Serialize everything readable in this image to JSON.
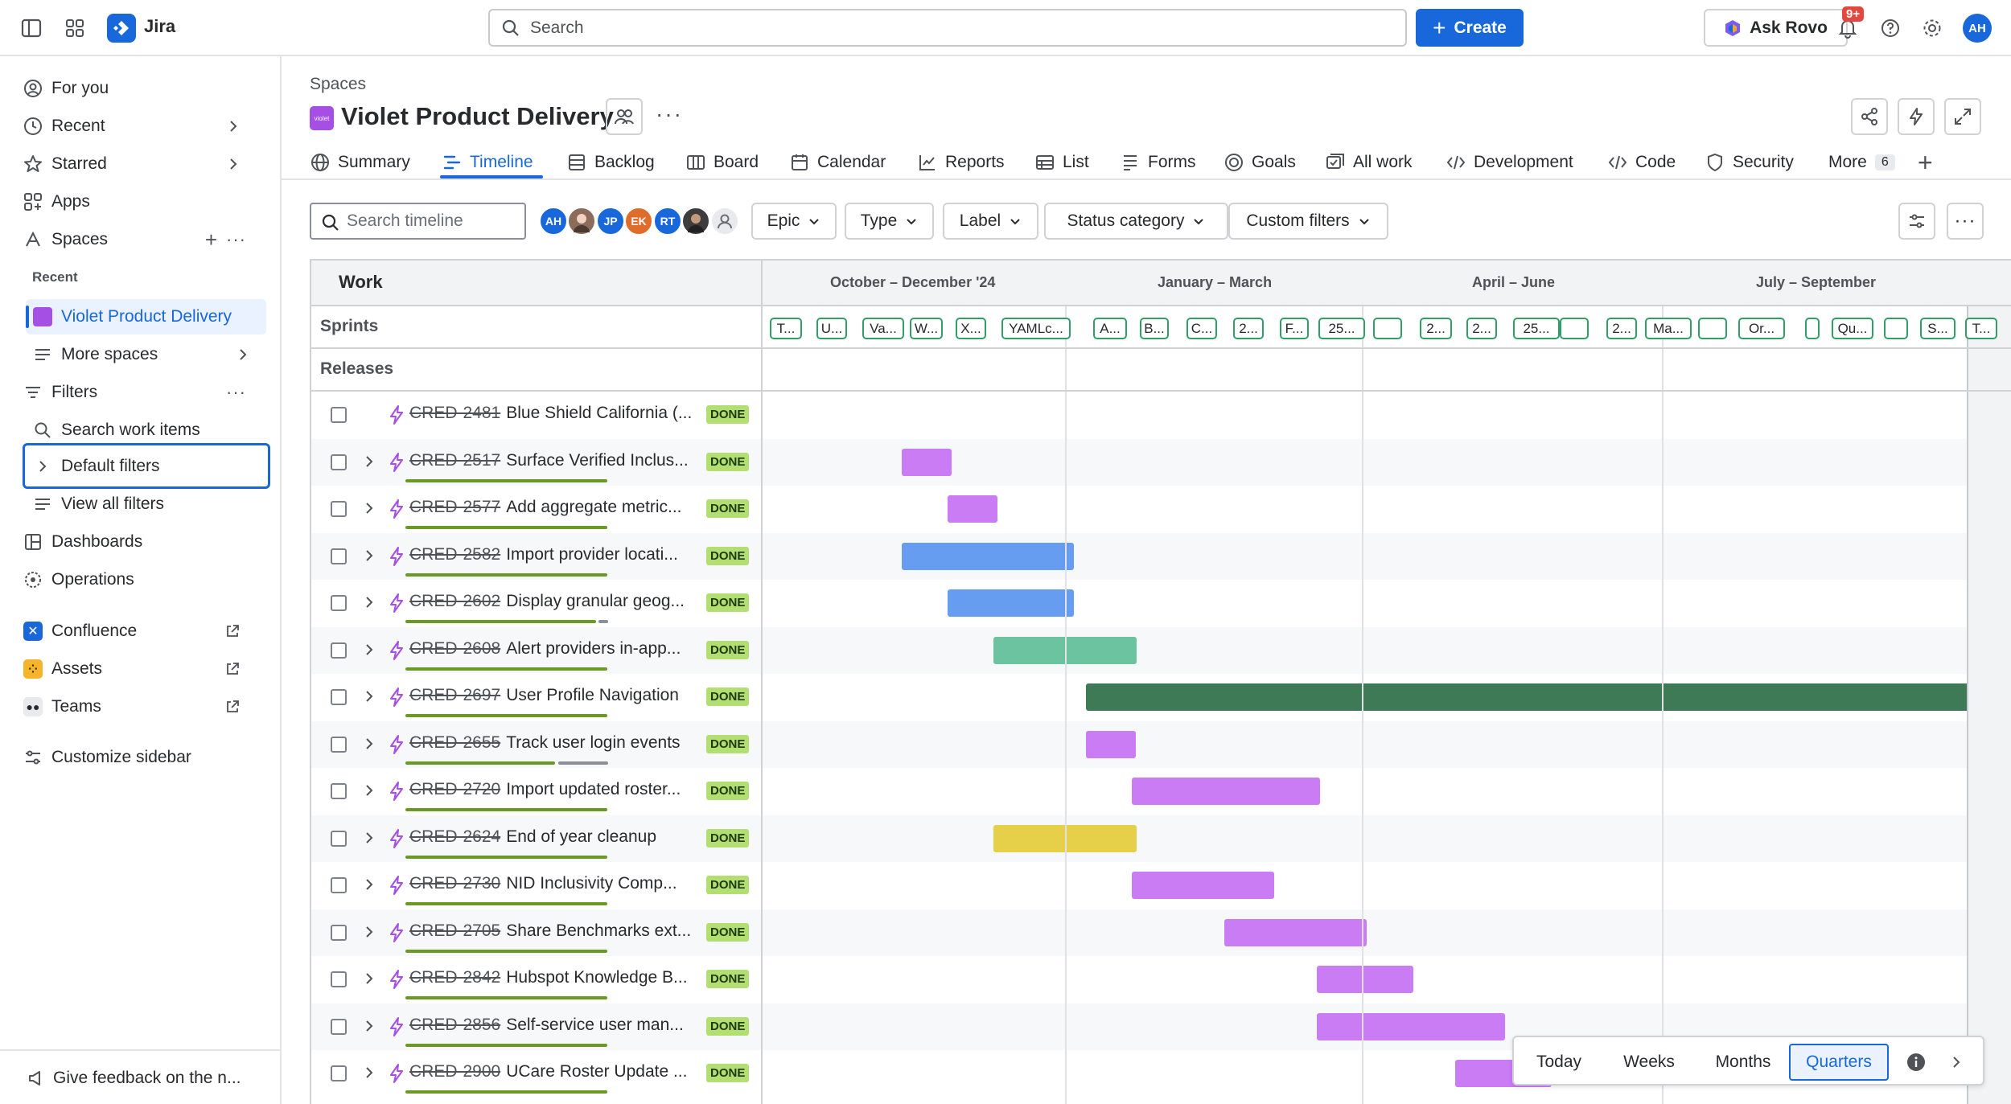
{
  "app": {
    "name": "Jira"
  },
  "topbar": {
    "search_placeholder": "Search",
    "create_label": "Create",
    "ask_rovo_label": "Ask Rovo",
    "notifications_badge": "9+",
    "avatar_initials": "AH"
  },
  "sidebar": {
    "for_you": "For you",
    "recent": "Recent",
    "starred": "Starred",
    "apps": "Apps",
    "spaces": "Spaces",
    "recent_heading": "Recent",
    "active_space": "Violet Product Delivery",
    "more_spaces": "More spaces",
    "filters": "Filters",
    "search_work_items": "Search work items",
    "default_filters": "Default filters",
    "view_all_filters": "View all filters",
    "dashboards": "Dashboards",
    "operations": "Operations",
    "confluence": "Confluence",
    "assets": "Assets",
    "teams": "Teams",
    "customize": "Customize sidebar",
    "feedback": "Give feedback on the n..."
  },
  "header": {
    "breadcrumb": "Spaces",
    "space_icon_text": "violet",
    "title": "Violet Product Delivery"
  },
  "tabs": [
    {
      "label": "Summary"
    },
    {
      "label": "Timeline"
    },
    {
      "label": "Backlog"
    },
    {
      "label": "Board"
    },
    {
      "label": "Calendar"
    },
    {
      "label": "Reports"
    },
    {
      "label": "List"
    },
    {
      "label": "Forms"
    },
    {
      "label": "Goals"
    },
    {
      "label": "All work"
    },
    {
      "label": "Development"
    },
    {
      "label": "Code"
    },
    {
      "label": "Security"
    },
    {
      "label": "More",
      "count": "6"
    }
  ],
  "filterbar": {
    "search_placeholder": "Search timeline",
    "avatars": [
      {
        "initials": "AH",
        "color": "#1868db"
      },
      {
        "initials": "",
        "color": "#8b6b5a"
      },
      {
        "initials": "JP",
        "color": "#1868db"
      },
      {
        "initials": "EK",
        "color": "#e06c2c"
      },
      {
        "initials": "RT",
        "color": "#1868db"
      },
      {
        "initials": "",
        "color": "#3d3d3d"
      },
      {
        "initials": "",
        "color": "#c7c9ce"
      }
    ],
    "epic": "Epic",
    "type": "Type",
    "label": "Label",
    "status_category": "Status category",
    "custom_filters": "Custom filters"
  },
  "timeline": {
    "work_header": "Work",
    "quarters": [
      "October – December '24",
      "January – March",
      "April – June",
      "July – September"
    ],
    "sprints_label": "Sprints",
    "releases_label": "Releases",
    "sprints": [
      "T...",
      "U...",
      "Va...",
      "W...",
      "X...",
      "YAMLc...",
      "A...",
      "B...",
      "C...",
      "2...",
      "F...",
      "25...",
      "",
      "2...",
      "2...",
      "25...",
      "",
      "2...",
      "Ma...",
      "",
      "Or...",
      "",
      "Qu...",
      "",
      "S...",
      "T..."
    ],
    "status_label": "DONE",
    "rows": [
      {
        "key": "CRED-2481",
        "title": "Blue Shield California (...",
        "status": "DONE"
      },
      {
        "key": "CRED-2517",
        "title": "Surface Verified Inclus...",
        "status": "DONE"
      },
      {
        "key": "CRED-2577",
        "title": "Add aggregate metric...",
        "status": "DONE"
      },
      {
        "key": "CRED-2582",
        "title": "Import provider locati...",
        "status": "DONE"
      },
      {
        "key": "CRED-2602",
        "title": "Display granular geog...",
        "status": "DONE"
      },
      {
        "key": "CRED-2608",
        "title": "Alert providers in-app...",
        "status": "DONE"
      },
      {
        "key": "CRED-2697",
        "title": "User Profile Navigation",
        "status": "DONE"
      },
      {
        "key": "CRED-2655",
        "title": "Track user login events",
        "status": "DONE"
      },
      {
        "key": "CRED-2720",
        "title": "Import updated roster...",
        "status": "DONE"
      },
      {
        "key": "CRED-2624",
        "title": "End of year cleanup",
        "status": "DONE"
      },
      {
        "key": "CRED-2730",
        "title": "NID Inclusivity Comp...",
        "status": "DONE"
      },
      {
        "key": "CRED-2705",
        "title": "Share Benchmarks ext...",
        "status": "DONE"
      },
      {
        "key": "CRED-2842",
        "title": "Hubspot Knowledge B...",
        "status": "DONE"
      },
      {
        "key": "CRED-2856",
        "title": "Self-service user man...",
        "status": "DONE"
      },
      {
        "key": "CRED-2900",
        "title": "UCare Roster Update ...",
        "status": "DONE"
      }
    ]
  },
  "zoom": {
    "today": "Today",
    "weeks": "Weeks",
    "months": "Months",
    "quarters": "Quarters"
  },
  "colors": {
    "accent": "#1868db",
    "purple": "#c97cf4",
    "blue": "#669df1",
    "green": "#6cc3a0",
    "dark_green": "#3d7a55",
    "yellow": "#e6d04a",
    "done": "#b3df72"
  }
}
